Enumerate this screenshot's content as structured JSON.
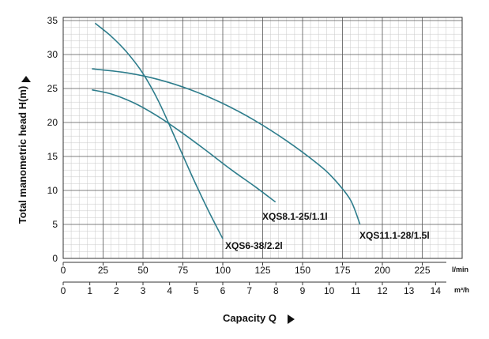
{
  "chart_data": {
    "type": "line",
    "ylabel": "Total manometric head H(m)",
    "xlabel": "Capacity Q",
    "ylim": [
      0,
      35
    ],
    "y_ticks": [
      "0",
      "5",
      "10",
      "15",
      "20",
      "25",
      "30",
      "35"
    ],
    "x_axis_lmin": {
      "unit": "l/min",
      "range": [
        0,
        250
      ],
      "ticks": [
        "0",
        "25",
        "50",
        "75",
        "100",
        "125",
        "150",
        "175",
        "200",
        "225"
      ]
    },
    "x_axis_m3h": {
      "unit": "m³/h",
      "range": [
        0,
        15
      ],
      "ticks": [
        "0",
        "1",
        "2",
        "3",
        "4",
        "5",
        "6",
        "7",
        "8",
        "9",
        "10",
        "11",
        "12",
        "13",
        "14"
      ]
    },
    "grid": true,
    "series": [
      {
        "name": "XQS6-38/2.2l",
        "color": "#2e7d8c",
        "x_lmin": [
          20,
          30,
          40,
          50,
          60,
          70,
          80,
          90,
          100
        ],
        "y": [
          34.6,
          32.7,
          30.3,
          27.2,
          23.0,
          17.8,
          12.5,
          7.5,
          2.9
        ]
      },
      {
        "name": "XQS8.1-25/1.1l",
        "color": "#2e7d8c",
        "x_lmin": [
          18,
          30,
          45,
          60,
          75,
          90,
          105,
          120,
          133
        ],
        "y": [
          24.8,
          24.2,
          22.8,
          20.8,
          18.4,
          15.8,
          13.1,
          10.6,
          8.3
        ]
      },
      {
        "name": "XQS11.1-28/1.5l",
        "color": "#2e7d8c",
        "x_lmin": [
          18,
          40,
          60,
          80,
          100,
          120,
          140,
          160,
          170,
          180,
          186
        ],
        "y": [
          27.9,
          27.3,
          26.3,
          24.8,
          22.8,
          20.3,
          17.3,
          13.8,
          11.6,
          8.6,
          5.0
        ]
      }
    ]
  }
}
